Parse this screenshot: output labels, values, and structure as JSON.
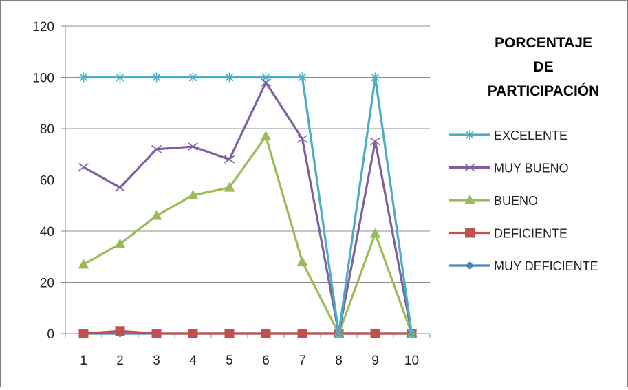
{
  "chart_data": {
    "type": "line",
    "title_lines": [
      "PORCENTAJE",
      "DE",
      "PARTICIPACIÓN"
    ],
    "x": [
      "1",
      "2",
      "3",
      "4",
      "5",
      "6",
      "7",
      "8",
      "9",
      "10"
    ],
    "ylim": [
      0,
      120
    ],
    "y_ticks": [
      "0",
      "20",
      "40",
      "60",
      "80",
      "100",
      "120"
    ],
    "grid": "horizontal",
    "legend_position": "right",
    "series": [
      {
        "name": "EXCELENTE",
        "color": "#4bacc6",
        "marker": "asterisk",
        "values": [
          100,
          100,
          100,
          100,
          100,
          100,
          100,
          0,
          100,
          0
        ]
      },
      {
        "name": "MUY BUENO",
        "color": "#7f5fa0",
        "marker": "x",
        "values": [
          65,
          57,
          72,
          73,
          68,
          98,
          76,
          0,
          75,
          0
        ]
      },
      {
        "name": "BUENO",
        "color": "#9bbb59",
        "marker": "triangle",
        "values": [
          27,
          35,
          46,
          54,
          57,
          77,
          28,
          0,
          39,
          0
        ]
      },
      {
        "name": "DEFICIENTE",
        "color": "#c0504d",
        "marker": "square",
        "values": [
          0,
          1,
          0,
          0,
          0,
          0,
          0,
          0,
          0,
          0
        ]
      },
      {
        "name": "MUY DEFICIENTE",
        "color": "#4f81bd",
        "marker": "diamond",
        "values": [
          0,
          0,
          0,
          0,
          0,
          0,
          0,
          0,
          0,
          0
        ]
      }
    ]
  }
}
